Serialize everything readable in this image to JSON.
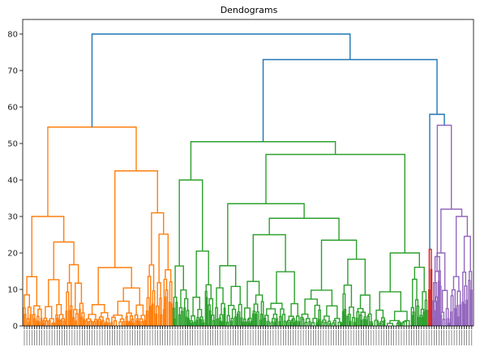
{
  "chart_data": {
    "type": "dendrogram",
    "title": "Dendograms",
    "xlabel": "",
    "ylabel": "",
    "ylim": [
      0,
      84
    ],
    "yticks": [
      0,
      10,
      20,
      30,
      40,
      50,
      60,
      70,
      80
    ],
    "grid": false,
    "legend": "none",
    "leaf_labels": "dense, unreadable sample indices along the x axis",
    "root": {
      "height": 80.0
    },
    "clusters": [
      {
        "name": "",
        "color": "#ff7f0e",
        "merge_height": 54.5
      },
      {
        "name": "",
        "color": "#2ca02c",
        "merge_height": 50.5
      },
      {
        "name": "",
        "color": "#d62728",
        "merge_height": 21.0
      },
      {
        "name": "",
        "color": "#9467bd",
        "merge_height": 55.0
      }
    ],
    "links": [
      {
        "color": "#1f77b4",
        "left_height": 54.5,
        "right_height": 73.0,
        "height": 80.0
      },
      {
        "color": "#1f77b4",
        "left_height": 50.5,
        "right_height": 58.0,
        "height": 73.0
      },
      {
        "color": "#1f77b4",
        "left_height": 21.0,
        "right_height": 55.0,
        "height": 58.0
      },
      {
        "color": "#ff7f0e",
        "left_height": 30.0,
        "right_height": 42.5,
        "height": 54.5
      },
      {
        "color": "#ff7f0e",
        "left_height": 13.5,
        "right_height": 23.0,
        "height": 30.0
      },
      {
        "color": "#ff7f0e",
        "left_height": 16.0,
        "right_height": 31.0,
        "height": 42.5
      },
      {
        "color": "#2ca02c",
        "left_height": 40.0,
        "right_height": 47.0,
        "height": 50.5
      },
      {
        "color": "#2ca02c",
        "left_height": 33.5,
        "right_height": 20.0,
        "height": 47.0
      },
      {
        "color": "#2ca02c",
        "left_height": 16.5,
        "right_height": 29.5,
        "height": 33.5
      },
      {
        "color": "#2ca02c",
        "left_height": 25.0,
        "right_height": 23.5,
        "height": 29.5
      },
      {
        "color": "#9467bd",
        "left_height": 19.0,
        "right_height": 32.0,
        "height": 55.0
      },
      {
        "color": "#9467bd",
        "left_height": 20.0,
        "right_height": 30.0,
        "height": 32.0
      }
    ]
  }
}
